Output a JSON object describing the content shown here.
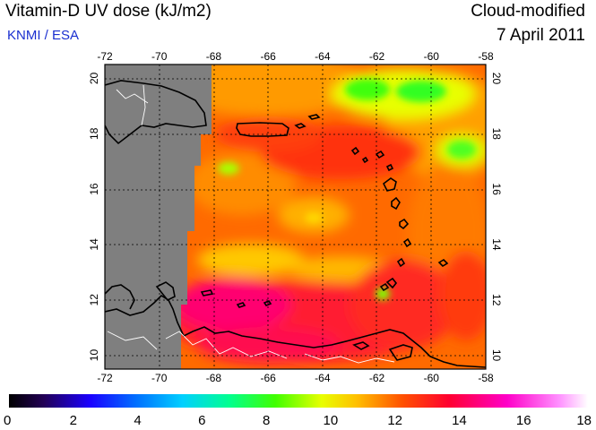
{
  "header": {
    "title": "Vitamin-D UV dose (kJ/m2)",
    "subtitle": "KNMI / ESA",
    "product": "Cloud-modified",
    "date": "7 April 2011"
  },
  "map": {
    "lon_range": [
      -72,
      -58
    ],
    "lat_range": [
      9.5,
      20.5
    ],
    "lon_ticks": [
      "-72",
      "-70",
      "-68",
      "-66",
      "-64",
      "-62",
      "-60",
      "-58"
    ],
    "lat_ticks": [
      "10",
      "12",
      "14",
      "16",
      "18",
      "20"
    ],
    "grid": true,
    "colors": {
      "no_data": "#7f7f7f",
      "coast": "#000000",
      "border": "#ffffff"
    }
  },
  "colorbar": {
    "labels": [
      "0",
      "2",
      "4",
      "6",
      "8",
      "10",
      "12",
      "14",
      "16",
      "18"
    ],
    "range": [
      0,
      18
    ],
    "colors": [
      "#000000",
      "#2a0060",
      "#0000ff",
      "#00b0ff",
      "#00ff80",
      "#40ff00",
      "#e0ff00",
      "#ffc000",
      "#ff6000",
      "#ff1040",
      "#ff00c0",
      "#ff60ff",
      "#ffffff"
    ]
  }
}
